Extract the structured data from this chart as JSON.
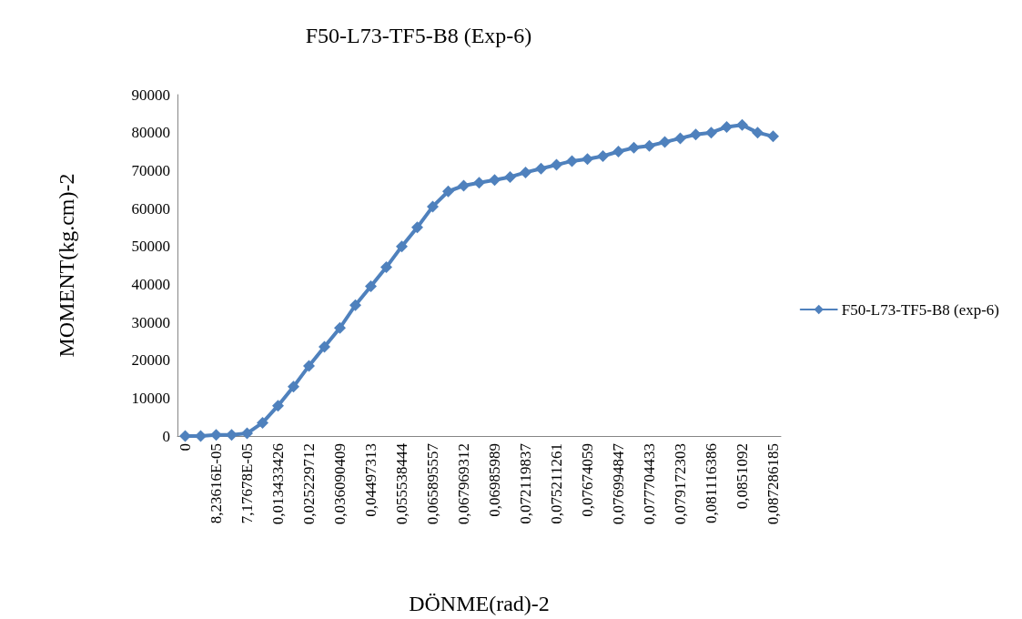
{
  "chart_data": {
    "type": "line",
    "title": "F50-L73-TF5-B8 (Exp-6)",
    "xlabel": "DÖNME(rad)-2",
    "ylabel": "MOMENT(kg.cm)-2",
    "categories": [
      "0",
      null,
      "8,23616E-05",
      null,
      "7,17678E-05",
      null,
      "0,013433426",
      null,
      "0,025229712",
      null,
      "0,036090409",
      null,
      "0,04497313",
      null,
      "0,055538444",
      null,
      "0,065895557",
      null,
      "0,067969312",
      null,
      "0,06985989",
      null,
      "0,072119837",
      null,
      "0,075211261",
      null,
      "0,07674059",
      null,
      "0,076994847",
      null,
      "0,077704433",
      null,
      "0,079172303",
      null,
      "0,081116386",
      null,
      "0,0851092",
      null,
      "0,087286185"
    ],
    "series": [
      {
        "name": "F50-L73-TF5-B8 (exp-6)",
        "color": "#4f81bd",
        "values": [
          0,
          0,
          300,
          300,
          700,
          3500,
          8000,
          13000,
          18500,
          23500,
          28500,
          34500,
          39500,
          44500,
          50000,
          55000,
          60500,
          64500,
          66000,
          66800,
          67500,
          68300,
          69500,
          70500,
          71500,
          72500,
          73000,
          73800,
          75000,
          76000,
          76500,
          77500,
          78500,
          79500,
          80000,
          81500,
          82000,
          80000,
          79000
        ]
      }
    ],
    "ylim": [
      0,
      90000
    ],
    "yticks": [
      0,
      10000,
      20000,
      30000,
      40000,
      50000,
      60000,
      70000,
      80000,
      90000
    ],
    "grid": false,
    "legend": "right",
    "marker": "diamond",
    "line_style": "solid"
  }
}
